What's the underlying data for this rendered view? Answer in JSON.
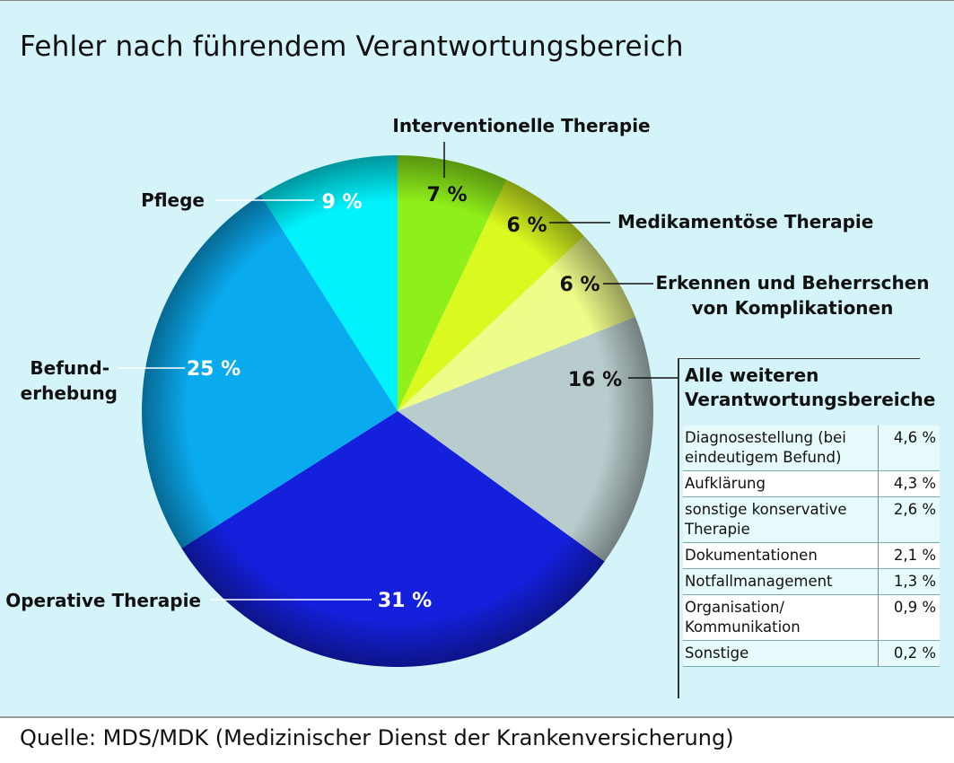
{
  "title": "Fehler nach führendem Verantwortungsbereich",
  "source": "Quelle: MDS/MDK (Medizinischer Dienst der Krankenversicherung)",
  "chart_data": {
    "type": "pie",
    "title": "Fehler nach führendem Verantwortungsbereich",
    "slices": [
      {
        "label": "Interventionelle Therapie",
        "value": 7,
        "display": "7 %",
        "color": "#8fef1a"
      },
      {
        "label": "Medikamentöse Therapie",
        "value": 6,
        "display": "6 %",
        "color": "#d9f91f"
      },
      {
        "label": "Erkennen und Beherrschen von Komplikationen",
        "value": 6,
        "display": "6 %",
        "color": "#eefc8a"
      },
      {
        "label": "Alle weiteren Verantwortungsbereiche",
        "value": 16,
        "display": "16 %",
        "color": "#b9cccd"
      },
      {
        "label": "Operative Therapie",
        "value": 31,
        "display": "31 %",
        "color": "#1420dc"
      },
      {
        "label": "Befund-erhebung",
        "value": 25,
        "display": "25 %",
        "color": "#0aaaee"
      },
      {
        "label": "Pflege",
        "value": 9,
        "display": "9 %",
        "color": "#00f2fc"
      }
    ]
  },
  "labels": {
    "interventionelle": "Interventionelle Therapie",
    "medikamentoese": "Medikamentöse Therapie",
    "erkennen_1": "Erkennen und Beherrschen",
    "erkennen_2": "von Komplikationen",
    "pflege": "Pflege",
    "befund_1": "Befund-",
    "befund_2": "erhebung",
    "operative": "Operative Therapie"
  },
  "others_box": {
    "heading_1": "Alle weiteren",
    "heading_2": "Verantwortungsbereiche",
    "rows": [
      {
        "label": "Diagnosestellung (bei eindeutigem Befund)",
        "value": "4,6 %"
      },
      {
        "label": "Aufklärung",
        "value": "4,3 %"
      },
      {
        "label": "sonstige konservative Therapie",
        "value": "2,6 %"
      },
      {
        "label": "Dokumentationen",
        "value": "2,1 %"
      },
      {
        "label": "Notfallmanagement",
        "value": "1,3 %"
      },
      {
        "label": "Organisation/ Kommunikation",
        "value": "0,9 %"
      },
      {
        "label": "Sonstige",
        "value": "0,2 %"
      }
    ]
  }
}
